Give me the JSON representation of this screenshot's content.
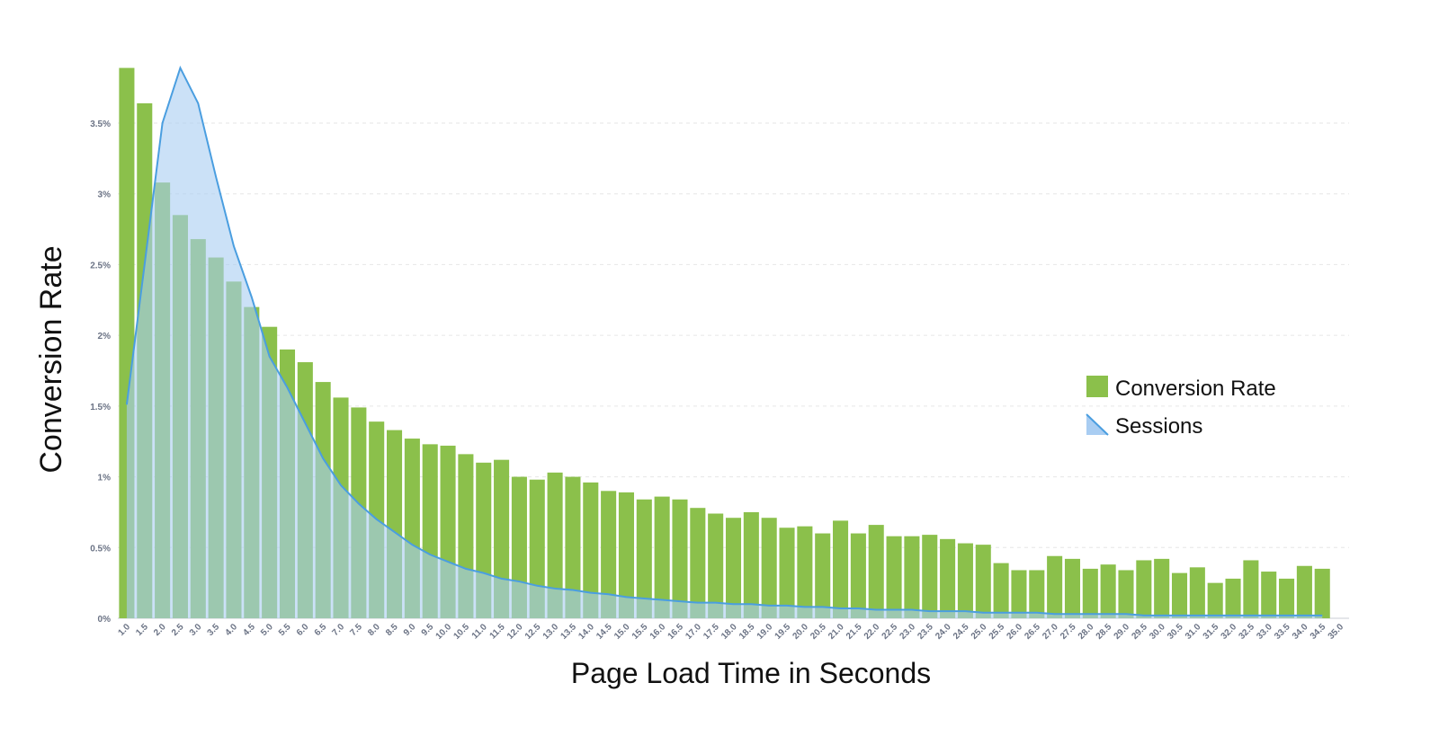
{
  "chart_data": {
    "type": "bar",
    "y_axis_title": "Conversion Rate",
    "x_axis_title": "Page Load Time in Seconds",
    "categories": [
      "1.0",
      "1.5",
      "2.0",
      "2.5",
      "3.0",
      "3.5",
      "4.0",
      "4.5",
      "5.0",
      "5.5",
      "6.0",
      "6.5",
      "7.0",
      "7.5",
      "8.0",
      "8.5",
      "9.0",
      "9.5",
      "10.0",
      "10.5",
      "11.0",
      "11.5",
      "12.0",
      "12.5",
      "13.0",
      "13.5",
      "14.0",
      "14.5",
      "15.0",
      "15.5",
      "16.0",
      "16.5",
      "17.0",
      "17.5",
      "18.0",
      "18.5",
      "19.0",
      "19.5",
      "20.0",
      "20.5",
      "21.0",
      "21.5",
      "22.0",
      "22.5",
      "23.0",
      "23.5",
      "24.0",
      "24.5",
      "25.0",
      "25.5",
      "26.0",
      "26.5",
      "27.0",
      "27.5",
      "28.0",
      "28.5",
      "29.0",
      "29.5",
      "30.0",
      "30.5",
      "31.0",
      "31.5",
      "32.0",
      "32.5",
      "33.0",
      "33.5",
      "34.0",
      "34.5",
      "35.0"
    ],
    "series": [
      {
        "name": "Conversion Rate",
        "type": "bar",
        "color": "#8bc04b",
        "values": [
          3.89,
          3.64,
          3.08,
          2.85,
          2.68,
          2.55,
          2.38,
          2.2,
          2.06,
          1.9,
          1.81,
          1.67,
          1.56,
          1.49,
          1.39,
          1.33,
          1.27,
          1.23,
          1.22,
          1.16,
          1.1,
          1.12,
          1.0,
          0.98,
          1.03,
          1.0,
          0.96,
          0.9,
          0.89,
          0.84,
          0.86,
          0.84,
          0.78,
          0.74,
          0.71,
          0.75,
          0.71,
          0.64,
          0.65,
          0.6,
          0.69,
          0.6,
          0.66,
          0.58,
          0.58,
          0.59,
          0.56,
          0.53,
          0.52,
          0.39,
          0.34,
          0.34,
          0.44,
          0.42,
          0.35,
          0.38,
          0.34,
          0.41,
          0.42,
          0.32,
          0.36,
          0.25,
          0.28,
          0.41,
          0.33,
          0.28,
          0.37,
          0.35,
          null
        ]
      },
      {
        "name": "Sessions",
        "type": "area",
        "color": "#4a9ee0",
        "fill": "#a9cdf2",
        "values": [
          1.51,
          2.5,
          3.5,
          3.89,
          3.64,
          3.12,
          2.63,
          2.27,
          1.85,
          1.63,
          1.38,
          1.13,
          0.94,
          0.81,
          0.7,
          0.61,
          0.52,
          0.45,
          0.4,
          0.35,
          0.32,
          0.28,
          0.26,
          0.23,
          0.21,
          0.2,
          0.18,
          0.17,
          0.15,
          0.14,
          0.13,
          0.12,
          0.11,
          0.11,
          0.1,
          0.1,
          0.09,
          0.09,
          0.08,
          0.08,
          0.07,
          0.07,
          0.06,
          0.06,
          0.06,
          0.05,
          0.05,
          0.05,
          0.04,
          0.04,
          0.04,
          0.04,
          0.03,
          0.03,
          0.03,
          0.03,
          0.03,
          0.02,
          0.02,
          0.02,
          0.02,
          0.02,
          0.02,
          0.02,
          0.02,
          0.02,
          0.02,
          0.02,
          null
        ]
      }
    ],
    "ylim": [
      0,
      3.9
    ],
    "yticks": [
      {
        "value": 0,
        "label": "0%"
      },
      {
        "value": 0.5,
        "label": "0.5%"
      },
      {
        "value": 1,
        "label": "1%"
      },
      {
        "value": 1.5,
        "label": "1.5%"
      },
      {
        "value": 2,
        "label": "2%"
      },
      {
        "value": 2.5,
        "label": "2.5%"
      },
      {
        "value": 3,
        "label": "3%"
      },
      {
        "value": 3.5,
        "label": "3.5%"
      }
    ],
    "grid": true,
    "legend_position": "right"
  }
}
